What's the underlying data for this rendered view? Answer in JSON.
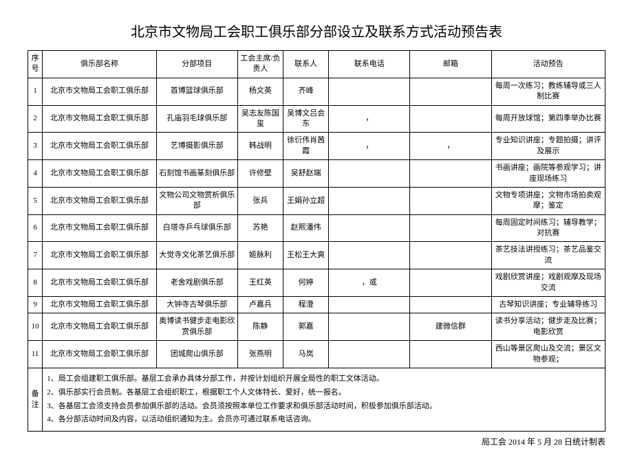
{
  "title": "北京市文物局工会职工俱乐部分部设立及联系方式活动预告表",
  "headers": {
    "seq": "序号",
    "name": "俱乐部名称",
    "proj": "分部项目",
    "chair": "工会主席/负责人",
    "contact": "联系人",
    "phone": "联系电话",
    "email": "邮箱",
    "act": "活动预告"
  },
  "rows": [
    {
      "seq": "1",
      "name": "北京市文物局工会职工俱乐部",
      "proj": "首博篮球俱乐部",
      "chair": "杨文英",
      "contact": "齐峰",
      "phone": "",
      "email": "",
      "act": "每周一次练习；教练辅导或三人制比赛"
    },
    {
      "seq": "2",
      "name": "北京市文物局工会职工俱乐部",
      "proj": "孔庙羽毛球俱乐部",
      "chair": "吴志友陈国玺",
      "contact": "吴博文吕会东",
      "phone": "，",
      "email": "",
      "act": "每周开放球馆；第四季举办比赛"
    },
    {
      "seq": "3",
      "name": "北京市文物局工会职工俱乐部",
      "proj": "艺博摄影俱乐部",
      "chair": "韩战明",
      "contact": "徐衍伟肖茜霞",
      "phone": "，",
      "email": "，",
      "act": "专业知识讲座；专题拍摄；讲评及展示"
    },
    {
      "seq": "4",
      "name": "北京市文物局工会职工俱乐部",
      "proj": "石刻馆书画篆刻俱乐部",
      "chair": "许修壁",
      "contact": "吴舒赵端",
      "phone": "",
      "email": "",
      "act": "书画讲座；画院等参观学习；讲座现场练习"
    },
    {
      "seq": "5",
      "name": "北京市文物局工会职工俱乐部",
      "proj": "文物公司文物赏析俱乐部",
      "chair": "张兵",
      "contact": "王娟孙立超",
      "phone": "",
      "email": "",
      "act": "文物专项讲座；文物市场拍卖观摩；鉴定"
    },
    {
      "seq": "6",
      "name": "北京市文物局工会职工俱乐部",
      "proj": "白塔寺乒乓球俱乐部",
      "chair": "苏艳",
      "contact": "赵熙潘伟",
      "phone": "",
      "email": "",
      "act": "每周固定时间练习；辅导教学；对抗赛"
    },
    {
      "seq": "7",
      "name": "北京市文物局工会职工俱乐部",
      "proj": "大觉寺文化茶艺俱乐部",
      "chair": "姬脉利",
      "contact": "王松王大爽",
      "phone": "",
      "email": "",
      "act": "茶艺技法讲授练习；茶艺品鉴交流"
    },
    {
      "seq": "8",
      "name": "北京市文物局工会职工俱乐部",
      "proj": "老舍戏剧俱乐部",
      "chair": "王红英",
      "contact": "何婷",
      "phone": "，或",
      "email": "",
      "act": "戏剧欣赏讲座；戏剧观摩及现场交流"
    },
    {
      "seq": "9",
      "name": "北京市文物局工会职工俱乐部",
      "proj": "大钟寺古琴俱乐部",
      "chair": "卢嘉兵",
      "contact": "程澄",
      "phone": "",
      "email": "",
      "act": "古琴知识讲座；专业辅导练习"
    },
    {
      "seq": "10",
      "name": "北京市文物局工会职工俱乐部",
      "proj": "奥博读书健步走电影欣赏俱乐部",
      "chair": "陈静",
      "contact": "郭嘉",
      "phone": "",
      "email": "建微信群",
      "act": "读书分享活动；健步走及比赛；电影欣赏"
    },
    {
      "seq": "11",
      "name": "北京市文物局工会职工俱乐部",
      "proj": "团城爬山俱乐部",
      "chair": "张燕明",
      "contact": "马岚",
      "phone": "",
      "email": "",
      "act": "西山等景区爬山及交流；景区文物参观；"
    }
  ],
  "notes_label": "备注",
  "notes": [
    "1、局工会组建职工俱乐部。基层工会承办具体分部工作，并按计划组织开展全局性的职工文体活动。",
    "2、俱乐部实行会员制。各基层工会组织职工，根据职工个人文体特长、爱好，统一报名。",
    "3、各基层工会须支持会员参加俱乐部的活动。会员须按照本单位工作要求和俱乐部活动时间，积极参加俱乐部活动。",
    "4、各分部活动时间及内容，以活动组织通知为主。会员亦可通过联系电话咨询。"
  ],
  "footer": "局工会 2014 年 5 月 28 日统计制表"
}
